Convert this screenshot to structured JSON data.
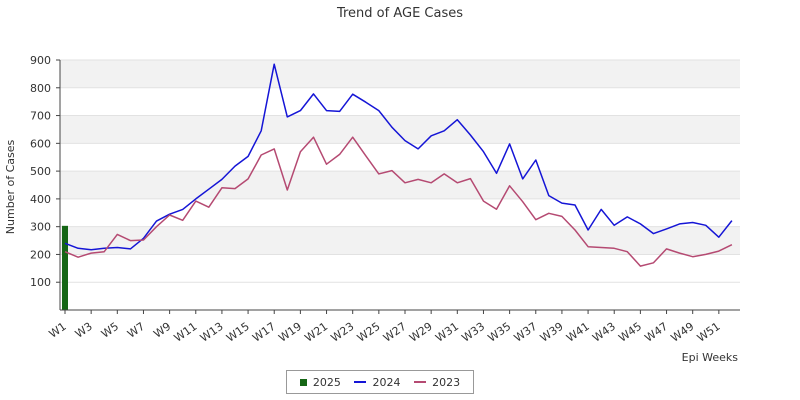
{
  "chart_data": {
    "type": "line",
    "title": "Trend of AGE Cases",
    "xlabel": "Epi Weeks",
    "ylabel": "Number of Cases",
    "ylim": [
      0,
      900
    ],
    "yticks": [
      100,
      200,
      300,
      400,
      500,
      600,
      700,
      800,
      900
    ],
    "xtick_labels": [
      "W1",
      "W3",
      "W5",
      "W7",
      "W9",
      "W11",
      "W13",
      "W15",
      "W17",
      "W19",
      "W21",
      "W23",
      "W25",
      "W27",
      "W29",
      "W31",
      "W33",
      "W35",
      "W37",
      "W39",
      "W41",
      "W43",
      "W45",
      "W47",
      "W49",
      "W51"
    ],
    "weeks": 52,
    "grid": "horizontal bands",
    "legend_position": "bottom",
    "series": [
      {
        "name": "2025",
        "type": "bar",
        "color": "#156615",
        "values": [
          303
        ]
      },
      {
        "name": "2024",
        "type": "line",
        "color": "#1515d6",
        "values": [
          240,
          222,
          217,
          222,
          225,
          220,
          258,
          320,
          345,
          362,
          400,
          435,
          470,
          518,
          553,
          645,
          885,
          695,
          718,
          778,
          718,
          715,
          777,
          748,
          718,
          658,
          610,
          580,
          627,
          645,
          685,
          630,
          570,
          492,
          598,
          472,
          540,
          412,
          385,
          378,
          288,
          362,
          305,
          335,
          310,
          275,
          292,
          310,
          315,
          305,
          262,
          322
        ]
      },
      {
        "name": "2023",
        "type": "line",
        "color": "#b54a72",
        "values": [
          210,
          190,
          205,
          210,
          272,
          250,
          252,
          300,
          342,
          323,
          392,
          370,
          440,
          437,
          472,
          558,
          580,
          432,
          570,
          622,
          525,
          560,
          622,
          555,
          490,
          502,
          458,
          470,
          458,
          490,
          458,
          473,
          392,
          363,
          447,
          390,
          325,
          348,
          337,
          288,
          228,
          225,
          222,
          210,
          158,
          170,
          220,
          205,
          192,
          200,
          212,
          235
        ]
      }
    ],
    "colors": {
      "band": "#f2f2f2",
      "grid": "#e2e2e2",
      "axis": "#444444"
    }
  }
}
